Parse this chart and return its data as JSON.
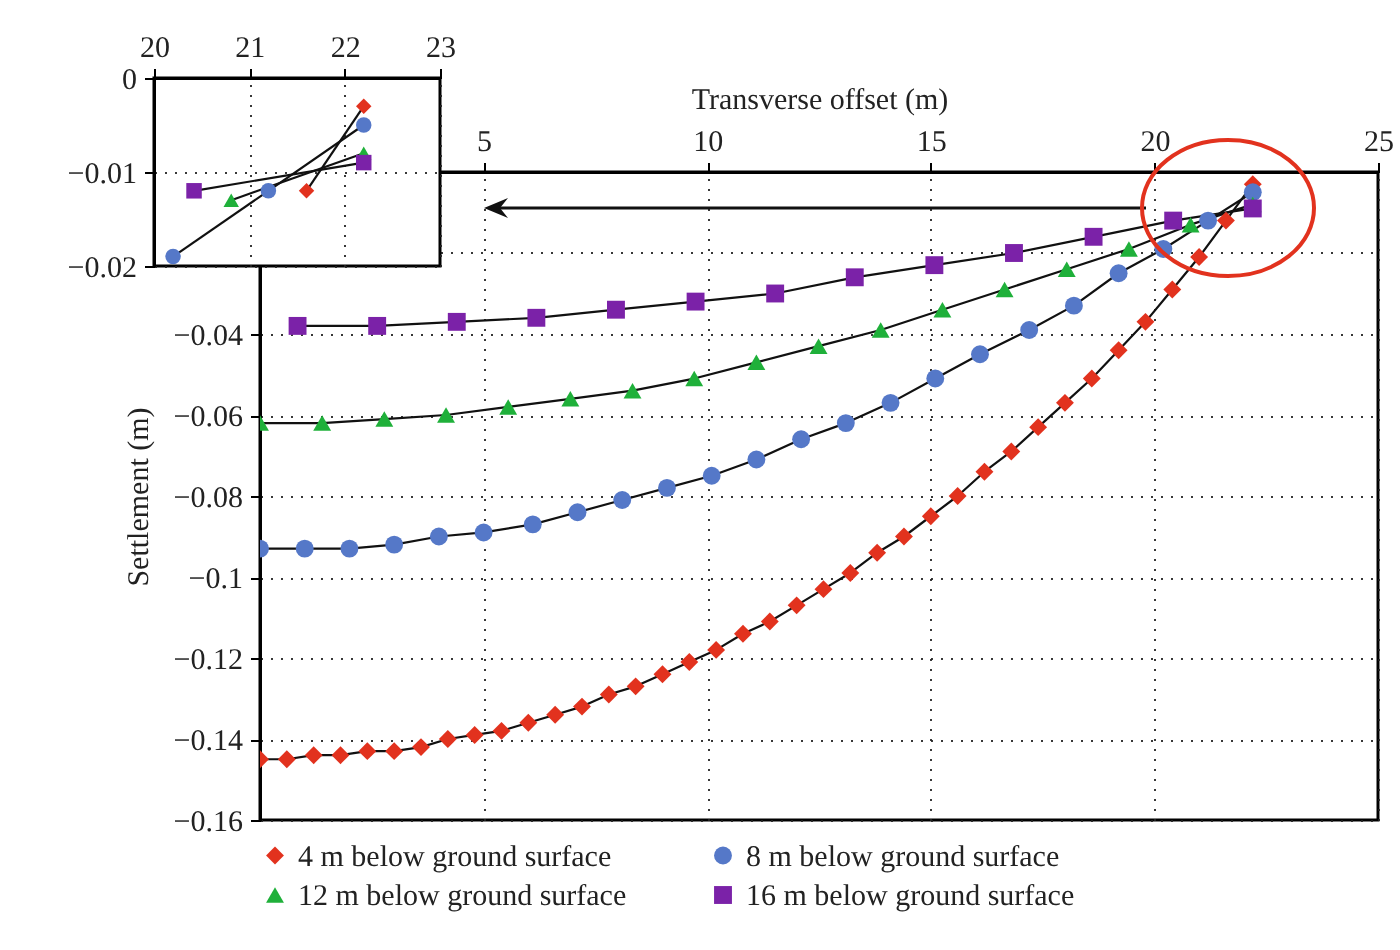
{
  "chart_data": [
    {
      "type": "line",
      "xlabel": "Transverse offset (m)",
      "ylabel": "Settlement (m)",
      "xlim": [
        0,
        25
      ],
      "xticks": [
        5,
        10,
        15,
        20,
        25
      ],
      "ylim": [
        -0.16,
        0
      ],
      "yticks": [
        -0.16,
        -0.14,
        -0.12,
        -0.1,
        -0.08,
        -0.06,
        -0.04,
        {
          "value": -0.02,
          "label": null
        },
        {
          "value": 0,
          "label": null
        }
      ],
      "grid": true,
      "legend": "bottom",
      "line_style": "solid",
      "series": [
        {
          "name": "4 m below ground surface",
          "color": "#e2321e",
          "marker": "diamond",
          "x": [
            0,
            0.6,
            1.2,
            1.8,
            2.4,
            3,
            3.6,
            4.2,
            4.8,
            5.4,
            6,
            6.6,
            7.2,
            7.8,
            8.4,
            9,
            9.6,
            10.2,
            10.8,
            11.4,
            12,
            12.6,
            13.2,
            13.8,
            14.4,
            15,
            15.6,
            16.2,
            16.8,
            17.4,
            18,
            18.6,
            19.2,
            19.8,
            20.4,
            21,
            21.6,
            22.2
          ],
          "values": [
            -0.145,
            -0.145,
            -0.144,
            -0.144,
            -0.143,
            -0.143,
            -0.142,
            -0.14,
            -0.139,
            -0.138,
            -0.136,
            -0.134,
            -0.132,
            -0.129,
            -0.127,
            -0.124,
            -0.121,
            -0.118,
            -0.114,
            -0.111,
            -0.107,
            -0.103,
            -0.099,
            -0.094,
            -0.09,
            -0.085,
            -0.08,
            -0.074,
            -0.069,
            -0.063,
            -0.057,
            -0.051,
            -0.044,
            -0.037,
            -0.029,
            -0.021,
            -0.012,
            -0.003
          ]
        },
        {
          "name": "8 m below ground surface",
          "color": "#5578c8",
          "marker": "circle",
          "x": [
            0,
            1,
            2,
            3,
            4,
            5,
            6.1,
            7.1,
            8.1,
            9.1,
            10.1,
            11.1,
            12.1,
            13.1,
            14.1,
            15.1,
            16.1,
            17.2,
            18.2,
            19.2,
            20.2,
            21.2,
            22.2
          ],
          "values": [
            -0.093,
            -0.093,
            -0.093,
            -0.092,
            -0.09,
            -0.089,
            -0.087,
            -0.084,
            -0.081,
            -0.078,
            -0.075,
            -0.071,
            -0.066,
            -0.062,
            -0.057,
            -0.051,
            -0.045,
            -0.039,
            -0.033,
            -0.025,
            -0.019,
            -0.012,
            -0.005
          ]
        },
        {
          "name": "12 m below ground surface",
          "color": "#1fb03a",
          "marker": "triangle",
          "x": [
            0,
            1.39,
            2.78,
            4.16,
            5.55,
            6.94,
            8.33,
            9.71,
            11.1,
            12.49,
            13.88,
            15.26,
            16.65,
            18.04,
            19.43,
            20.81,
            22.2
          ],
          "values": [
            -0.062,
            -0.062,
            -0.061,
            -0.06,
            -0.058,
            -0.056,
            -0.054,
            -0.051,
            -0.047,
            -0.043,
            -0.039,
            -0.034,
            -0.029,
            -0.024,
            -0.019,
            -0.013,
            -0.008
          ]
        },
        {
          "name": "16 m below ground surface",
          "color": "#7b22a8",
          "marker": "square",
          "x": [
            0.84,
            2.62,
            4.4,
            6.18,
            7.96,
            9.74,
            11.52,
            13.3,
            15.08,
            16.86,
            18.64,
            20.42,
            22.2
          ],
          "values": [
            -0.038,
            -0.038,
            -0.037,
            -0.036,
            -0.034,
            -0.032,
            -0.03,
            -0.026,
            -0.023,
            -0.02,
            -0.016,
            -0.012,
            -0.009
          ]
        }
      ]
    },
    {
      "type": "line",
      "xlim": [
        20,
        23
      ],
      "xticks": [
        20,
        21,
        22,
        23
      ],
      "ylim": [
        -0.02,
        0
      ],
      "yticks": [
        -0.02,
        -0.01,
        0
      ],
      "grid": true,
      "line_style": "solid",
      "series": [
        {
          "color": "#e2321e",
          "marker": "diamond",
          "x": [
            21.6,
            22.2
          ],
          "values": [
            -0.012,
            -0.003
          ]
        },
        {
          "color": "#5578c8",
          "marker": "circle",
          "x": [
            20.2,
            21.2,
            22.2
          ],
          "values": [
            -0.019,
            -0.012,
            -0.005
          ]
        },
        {
          "color": "#1fb03a",
          "marker": "triangle",
          "x": [
            20.81,
            22.2
          ],
          "values": [
            -0.013,
            -0.008
          ]
        },
        {
          "color": "#7b22a8",
          "marker": "square",
          "x": [
            20.42,
            22.2
          ],
          "values": [
            -0.012,
            -0.009
          ]
        }
      ]
    }
  ]
}
